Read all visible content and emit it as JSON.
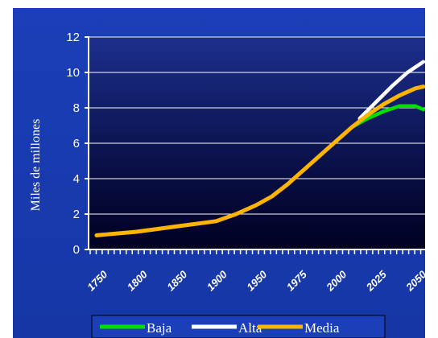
{
  "chart_data": {
    "type": "line",
    "ylabel": "Miles de millones",
    "ylim": [
      0,
      12
    ],
    "y_ticks": [
      "0",
      "2",
      "4",
      "6",
      "8",
      "10",
      "12"
    ],
    "x_tick_labels": [
      "1750",
      "1800",
      "1850",
      "1900",
      "1950",
      "1975",
      "2000",
      "2025",
      "2050"
    ],
    "grid": "horizontal",
    "legend_position": "bottom",
    "colors": {
      "outer_background": "#1a3fb8",
      "plot_background": "#000033",
      "grid": "#ffffff",
      "Baja": "#00e000",
      "Alta": "#ffffff",
      "Media": "#ffb400"
    },
    "series": [
      {
        "name": "Media",
        "points": [
          {
            "x": 1750,
            "y": 0.8
          },
          {
            "x": 1800,
            "y": 1.0
          },
          {
            "x": 1850,
            "y": 1.3
          },
          {
            "x": 1900,
            "y": 1.6
          },
          {
            "x": 1925,
            "y": 2.0
          },
          {
            "x": 1950,
            "y": 2.5
          },
          {
            "x": 1960,
            "y": 3.0
          },
          {
            "x": 1970,
            "y": 3.7
          },
          {
            "x": 1975,
            "y": 4.1
          },
          {
            "x": 1990,
            "y": 5.3
          },
          {
            "x": 2000,
            "y": 6.1
          },
          {
            "x": 2010,
            "y": 6.9
          },
          {
            "x": 2020,
            "y": 7.6
          },
          {
            "x": 2030,
            "y": 8.2
          },
          {
            "x": 2040,
            "y": 8.7
          },
          {
            "x": 2050,
            "y": 9.1
          },
          {
            "x": 2055,
            "y": 9.2
          }
        ]
      },
      {
        "name": "Baja",
        "points": [
          {
            "x": 2010,
            "y": 6.9
          },
          {
            "x": 2020,
            "y": 7.4
          },
          {
            "x": 2030,
            "y": 7.8
          },
          {
            "x": 2040,
            "y": 8.1
          },
          {
            "x": 2050,
            "y": 8.1
          },
          {
            "x": 2055,
            "y": 7.9
          }
        ]
      },
      {
        "name": "Alta",
        "points": [
          {
            "x": 2015,
            "y": 7.4
          },
          {
            "x": 2025,
            "y": 8.3
          },
          {
            "x": 2035,
            "y": 9.2
          },
          {
            "x": 2045,
            "y": 10.0
          },
          {
            "x": 2055,
            "y": 10.6
          }
        ]
      }
    ],
    "legend": [
      {
        "name": "Baja",
        "color": "#00e000"
      },
      {
        "name": "Alta",
        "color": "#ffffff"
      },
      {
        "name": "Media",
        "color": "#ffb400"
      }
    ]
  }
}
